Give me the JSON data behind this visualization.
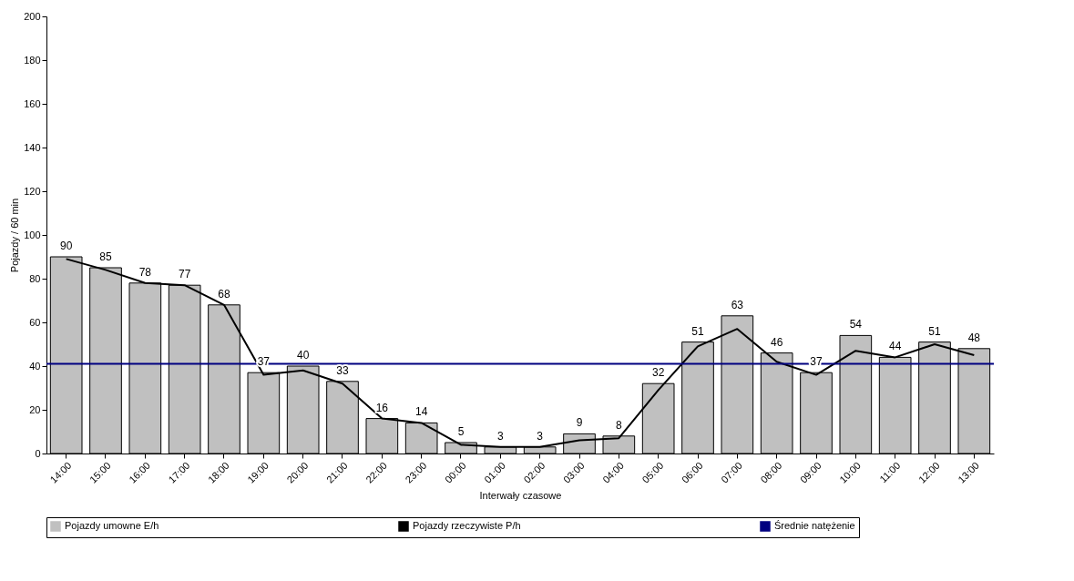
{
  "chart_data": {
    "type": "bar",
    "xlabel": "Interwały czasowe",
    "ylabel": "Pojazdy / 60 min",
    "categories": [
      "14:00",
      "15:00",
      "16:00",
      "17:00",
      "18:00",
      "19:00",
      "20:00",
      "21:00",
      "22:00",
      "23:00",
      "00:00",
      "01:00",
      "02:00",
      "03:00",
      "04:00",
      "05:00",
      "06:00",
      "07:00",
      "08:00",
      "09:00",
      "10:00",
      "11:00",
      "12:00",
      "13:00"
    ],
    "series": [
      {
        "name": "Pojazdy umowne E/h",
        "color": "#c0c0c0",
        "data_labels": true,
        "values": [
          90,
          85,
          78,
          77,
          68,
          37,
          40,
          33,
          16,
          14,
          5,
          3,
          3,
          9,
          8,
          32,
          51,
          63,
          46,
          37,
          54,
          44,
          51,
          48
        ]
      },
      {
        "name": "Pojazdy rzeczywiste P/h",
        "type": "line",
        "color": "#000000",
        "values": [
          89,
          84,
          78,
          77,
          68,
          36,
          38,
          32,
          16,
          14,
          4,
          3,
          3,
          6,
          7,
          29,
          49,
          57,
          42,
          36,
          47,
          44,
          50,
          45
        ]
      }
    ],
    "ref_lines": [
      {
        "axis": "y",
        "value": 41,
        "label": "Średnie natężenie",
        "color": "#000080"
      }
    ],
    "ylim": [
      0,
      200
    ],
    "yticks": [
      0,
      20,
      40,
      60,
      80,
      100,
      120,
      140,
      160,
      180,
      200
    ],
    "grid": false,
    "legend": "bottom",
    "marker": "none",
    "line_style": "solid"
  }
}
